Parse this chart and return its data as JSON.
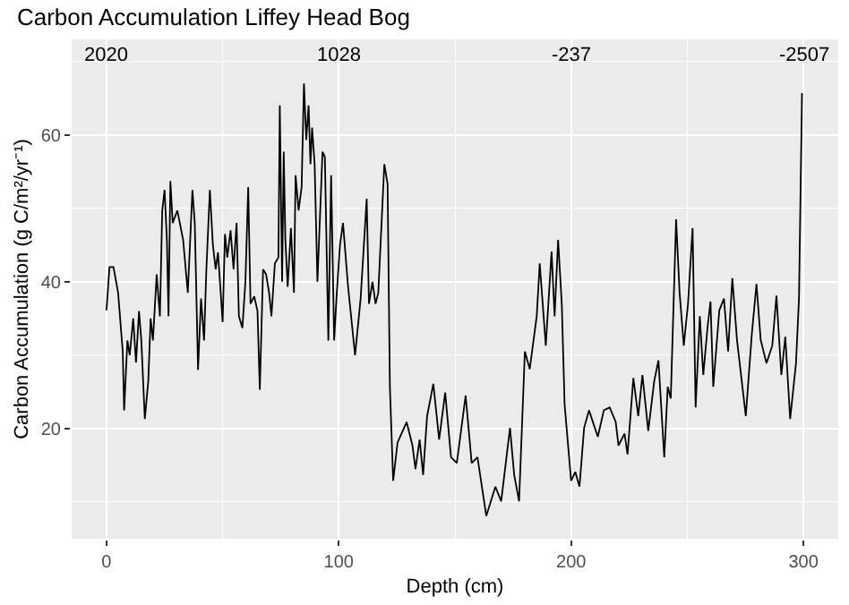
{
  "chart_data": {
    "type": "line",
    "title": "Carbon Accumulation Liffey Head Bog",
    "xlabel": "Depth (cm)",
    "ylabel": "Carbon Accumulation (g C/m²/yr⁻¹)",
    "x": [
      0,
      1.3,
      3,
      5,
      7,
      7.6,
      9,
      10,
      11.5,
      12.7,
      14,
      15,
      16.5,
      18,
      19,
      20,
      21.6,
      23,
      24,
      25,
      26,
      26.7,
      27.5,
      28.5,
      30.5,
      33,
      35,
      37,
      38,
      39.4,
      40.7,
      42,
      43,
      44.5,
      45.8,
      47,
      48,
      50,
      51,
      52,
      53.4,
      54.7,
      56,
      57,
      58.5,
      59.8,
      61,
      62,
      63.6,
      65,
      66,
      67.4,
      68.7,
      70,
      71,
      72.5,
      74,
      74.6,
      75.6,
      76.3,
      77,
      78,
      79.4,
      80.7,
      81.4,
      82.7,
      84,
      85,
      86,
      87,
      87.8,
      88.5,
      89.6,
      90.8,
      93,
      94,
      95.5,
      96.7,
      98,
      99,
      100.5,
      101.8,
      104,
      107,
      109.4,
      112,
      113,
      114.5,
      115.8,
      117,
      119.6,
      121,
      122,
      123.4,
      125.3,
      129.2,
      131.7,
      133,
      134.8,
      136.3,
      138,
      140.7,
      143.2,
      145.8,
      148.3,
      150.8,
      154.6,
      157.2,
      159.7,
      163.5,
      167.4,
      169.9,
      173.7,
      175.5,
      177.6,
      180.1,
      182.2,
      185.2,
      186.5,
      189.1,
      191.6,
      192.9,
      194.4,
      196,
      197.2,
      200,
      201.8,
      203.6,
      205.6,
      207.7,
      211.5,
      214.1,
      216.6,
      219.2,
      220.4,
      223,
      224.3,
      226.8,
      228.9,
      230.7,
      233.2,
      235.8,
      237.6,
      240.1,
      241.6,
      242.9,
      245.2,
      246.7,
      248.5,
      250.3,
      252.3,
      253.6,
      255.4,
      256.9,
      258.7,
      260,
      261.2,
      263.8,
      265.8,
      267.6,
      269.4,
      271.4,
      275.2,
      277.8,
      279.8,
      281.6,
      284.1,
      286.6,
      288.4,
      290.5,
      292.2,
      294.3,
      296.8,
      298.1,
      299.4
    ],
    "series": [
      {
        "color": "#000000",
        "values": [
          36.1,
          42,
          42,
          38.5,
          30.5,
          22.5,
          32,
          30,
          35,
          29,
          36,
          32,
          21.3,
          26.5,
          35,
          32,
          41,
          35.3,
          49.7,
          52.5,
          45.7,
          35.3,
          53.7,
          48,
          49.7,
          45.7,
          38.5,
          52.5,
          48,
          28,
          37.7,
          32,
          41.7,
          52.5,
          45,
          41.7,
          44,
          34.5,
          46.5,
          43.3,
          47,
          41.7,
          48,
          35.3,
          33.7,
          40,
          52.9,
          37,
          38,
          36,
          25.3,
          41.7,
          41,
          38.5,
          35.3,
          42.5,
          43.3,
          64,
          40,
          57.7,
          45.7,
          39.3,
          47.3,
          38.5,
          54.5,
          49.7,
          52.9,
          67,
          59.3,
          64,
          56,
          61,
          56,
          40,
          57.7,
          57,
          32,
          54.5,
          32,
          37.7,
          45,
          48,
          39.3,
          30,
          37.7,
          51.3,
          37,
          40,
          37,
          38.5,
          56,
          53.3,
          25.7,
          12.9,
          18.1,
          20.9,
          17.7,
          14.5,
          18.5,
          13.7,
          21.7,
          26.1,
          18.5,
          24.9,
          16.1,
          15.3,
          24.5,
          15.3,
          16.1,
          8.1,
          12.1,
          10.1,
          20.1,
          13.7,
          10.1,
          30.5,
          28.1,
          35.3,
          42.5,
          31.3,
          44.1,
          35.3,
          45.7,
          36.9,
          23.3,
          12.9,
          14.1,
          12.1,
          20.1,
          22.5,
          18.9,
          22.5,
          22.9,
          20.9,
          17.7,
          19.3,
          16.5,
          26.9,
          21.7,
          27.3,
          19.7,
          26.5,
          29.3,
          16.1,
          25.7,
          24.1,
          48.5,
          38.5,
          31.3,
          36.9,
          47.3,
          22.9,
          35.3,
          27.3,
          33.7,
          37.3,
          25.7,
          36.1,
          37.7,
          30.5,
          40.5,
          32.1,
          21.7,
          32.9,
          39.7,
          32.1,
          28.9,
          31.3,
          38.1,
          27.3,
          32.5,
          21.3,
          28.9,
          37.7,
          65.7
        ]
      }
    ],
    "xlim": [
      -15,
      315
    ],
    "xticks": [
      0,
      100,
      200,
      300
    ],
    "ylim": [
      5,
      73
    ],
    "yticks": [
      20,
      40,
      60
    ],
    "grid": true,
    "annotations": [
      "2020",
      "1028",
      "-237",
      "-2507"
    ]
  }
}
